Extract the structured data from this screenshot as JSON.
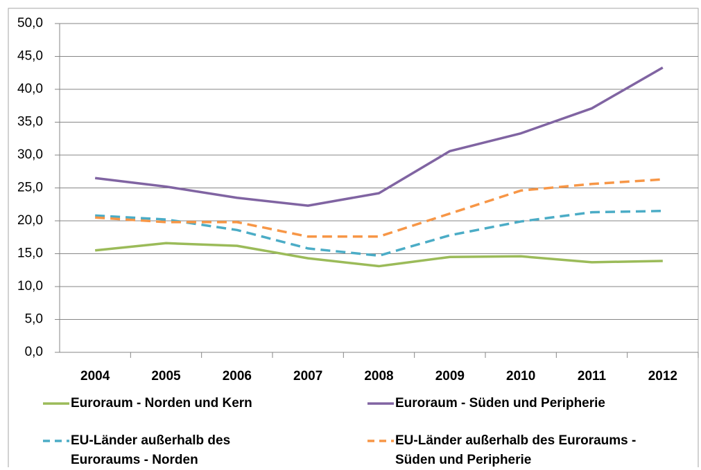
{
  "chart_data": {
    "type": "line",
    "categories": [
      "2004",
      "2005",
      "2006",
      "2007",
      "2008",
      "2009",
      "2010",
      "2011",
      "2012"
    ],
    "series": [
      {
        "name": "Euroraum - Norden und Kern",
        "color": "#9bbb59",
        "dashed": false,
        "values": [
          15.5,
          16.6,
          16.2,
          14.3,
          13.1,
          14.5,
          14.6,
          13.7,
          13.9
        ]
      },
      {
        "name": "Euroraum - Süden und Peripherie",
        "color": "#8064a2",
        "dashed": false,
        "values": [
          26.5,
          25.2,
          23.5,
          22.3,
          24.2,
          30.6,
          33.3,
          37.1,
          43.3
        ]
      },
      {
        "name": "EU-Länder außerhalb des Euroraums - Norden",
        "color": "#4bacc6",
        "dashed": true,
        "values": [
          20.8,
          20.2,
          18.6,
          15.8,
          14.7,
          17.8,
          19.9,
          21.3,
          21.5
        ]
      },
      {
        "name": "EU-Länder außerhalb des Euroraums - Süden und Peripherie",
        "color": "#f79646",
        "dashed": true,
        "values": [
          20.5,
          19.8,
          19.8,
          17.6,
          17.6,
          21.1,
          24.6,
          25.6,
          26.3
        ]
      }
    ],
    "ylim": [
      0,
      50
    ],
    "yticks": [
      {
        "value": 0,
        "label": "0,0"
      },
      {
        "value": 5,
        "label": "5,0"
      },
      {
        "value": 10,
        "label": "10,0"
      },
      {
        "value": 15,
        "label": "15,0"
      },
      {
        "value": 20,
        "label": "20,0"
      },
      {
        "value": 25,
        "label": "25,0"
      },
      {
        "value": 30,
        "label": "30,0"
      },
      {
        "value": 35,
        "label": "35,0"
      },
      {
        "value": 40,
        "label": "40,0"
      },
      {
        "value": 45,
        "label": "45,0"
      },
      {
        "value": 50,
        "label": "50,0"
      }
    ],
    "grid": true
  }
}
